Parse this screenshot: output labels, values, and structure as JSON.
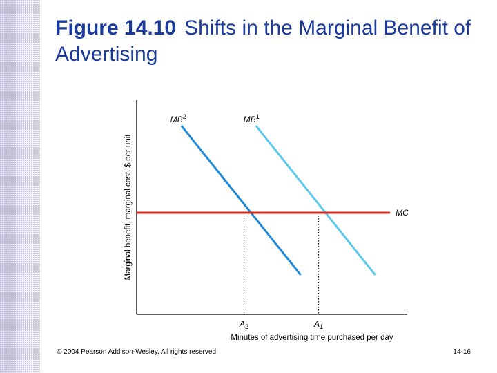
{
  "slide": {
    "figure_label": "Figure 14.10",
    "title_text": "Shifts in the Marginal Benefit of Advertising",
    "copyright": "© 2004 Pearson Addison-Wesley. All rights reserved",
    "page_number": "14-16"
  },
  "colors": {
    "title": "#1a3a9c",
    "mc_line": "#d42a1e",
    "mb1_line": "#5ac8ec",
    "mb2_line": "#1e88d8",
    "axis": "#000000"
  },
  "chart_data": {
    "type": "line",
    "xlabel": "Minutes of advertising time purchased per day",
    "ylabel": "Marginal benefit, marginal cost, $ per unit",
    "series": [
      {
        "name": "MB",
        "superscript": "2",
        "points": [
          [
            0.6,
            9.1
          ],
          [
            2.2,
            1.9
          ]
        ]
      },
      {
        "name": "MB",
        "superscript": "1",
        "points": [
          [
            1.6,
            9.1
          ],
          [
            3.2,
            1.9
          ]
        ]
      },
      {
        "name": "MC",
        "superscript": "",
        "points": [
          [
            0.0,
            4.9
          ],
          [
            3.4,
            4.9
          ]
        ]
      }
    ],
    "x_ticks": [
      {
        "base": "A",
        "sub": "2",
        "x": 1.44
      },
      {
        "base": "A",
        "sub": "1",
        "x": 2.44
      }
    ],
    "grid": false
  }
}
